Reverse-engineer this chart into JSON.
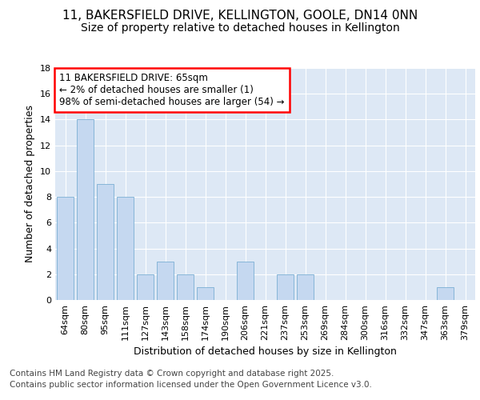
{
  "title_line1": "11, BAKERSFIELD DRIVE, KELLINGTON, GOOLE, DN14 0NN",
  "title_line2": "Size of property relative to detached houses in Kellington",
  "xlabel": "Distribution of detached houses by size in Kellington",
  "ylabel": "Number of detached properties",
  "categories": [
    "64sqm",
    "80sqm",
    "95sqm",
    "111sqm",
    "127sqm",
    "143sqm",
    "158sqm",
    "174sqm",
    "190sqm",
    "206sqm",
    "221sqm",
    "237sqm",
    "253sqm",
    "269sqm",
    "284sqm",
    "300sqm",
    "316sqm",
    "332sqm",
    "347sqm",
    "363sqm",
    "379sqm"
  ],
  "values": [
    8,
    14,
    9,
    8,
    2,
    3,
    2,
    1,
    0,
    3,
    0,
    2,
    2,
    0,
    0,
    0,
    0,
    0,
    0,
    1,
    0
  ],
  "bar_color": "#c5d8f0",
  "bar_edge_color": "#7bafd4",
  "annotation_box_text": "11 BAKERSFIELD DRIVE: 65sqm\n← 2% of detached houses are smaller (1)\n98% of semi-detached houses are larger (54) →",
  "ylim": [
    0,
    18
  ],
  "yticks": [
    0,
    2,
    4,
    6,
    8,
    10,
    12,
    14,
    16,
    18
  ],
  "fig_background_color": "#ffffff",
  "plot_background_color": "#dde8f5",
  "grid_color": "#ffffff",
  "footer_line1": "Contains HM Land Registry data © Crown copyright and database right 2025.",
  "footer_line2": "Contains public sector information licensed under the Open Government Licence v3.0.",
  "title_fontsize": 11,
  "subtitle_fontsize": 10,
  "axis_label_fontsize": 9,
  "tick_fontsize": 8,
  "annotation_fontsize": 8.5,
  "footer_fontsize": 7.5
}
